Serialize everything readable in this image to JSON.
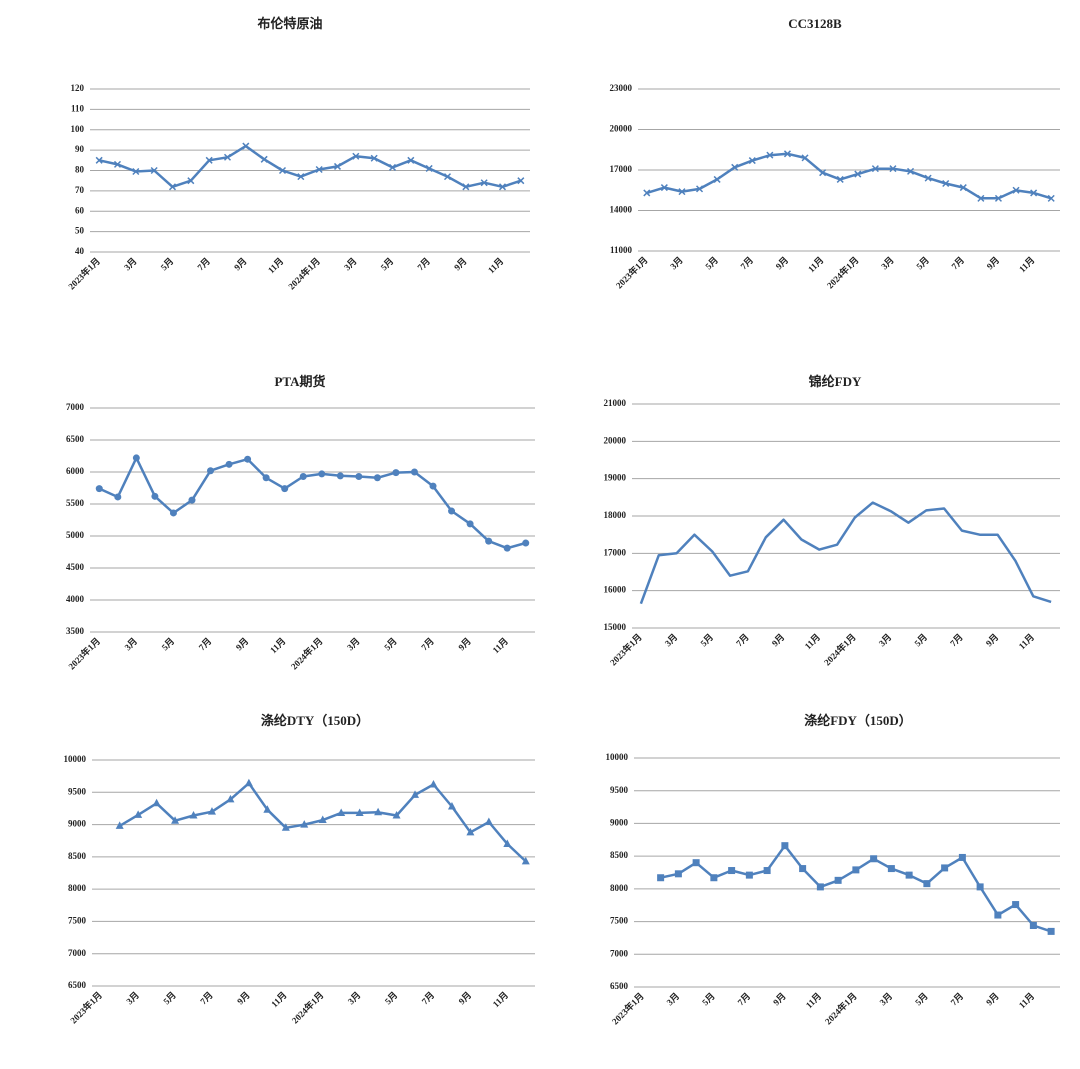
{
  "chart_data": [
    {
      "type": "line",
      "title": "布伦特原油",
      "marker": "x",
      "color": "#4f81bd",
      "grid": true,
      "categories": [
        "2023年1月",
        null,
        "3月",
        null,
        "5月",
        null,
        "7月",
        null,
        "9月",
        null,
        "11月",
        null,
        "2024年1月",
        null,
        "3月",
        null,
        "5月",
        null,
        "7月",
        null,
        "9月",
        null,
        "11月",
        null
      ],
      "values": [
        85,
        83,
        79.5,
        80,
        72,
        75,
        85,
        86.5,
        92,
        85.5,
        80,
        77,
        80.5,
        82,
        87,
        86,
        81.5,
        85,
        81,
        77,
        72,
        74,
        72,
        75
      ],
      "ylim": [
        40,
        120
      ],
      "yticks": [
        40,
        50,
        60,
        70,
        80,
        90,
        100,
        110,
        120
      ]
    },
    {
      "type": "line",
      "title": "CC3128B",
      "marker": "x",
      "color": "#4f81bd",
      "grid": true,
      "categories": [
        "2023年1月",
        null,
        "3月",
        null,
        "5月",
        null,
        "7月",
        null,
        "9月",
        null,
        "11月",
        null,
        "2024年1月",
        null,
        "3月",
        null,
        "5月",
        null,
        "7月",
        null,
        "9月",
        null,
        "11月",
        null
      ],
      "values": [
        15300,
        15700,
        15400,
        15600,
        16300,
        17200,
        17700,
        18100,
        18200,
        17900,
        16800,
        16300,
        16700,
        17100,
        17100,
        16900,
        16400,
        16000,
        15700,
        14900,
        14900,
        15500,
        15300,
        14900
      ],
      "ylim": [
        11000,
        23000
      ],
      "yticks": [
        11000,
        14000,
        17000,
        20000,
        23000
      ]
    },
    {
      "type": "line",
      "title": "PTA期货",
      "marker": "circle",
      "color": "#4f81bd",
      "grid": true,
      "categories": [
        "2023年1月",
        null,
        "3月",
        null,
        "5月",
        null,
        "7月",
        null,
        "9月",
        null,
        "11月",
        null,
        "2024年1月",
        null,
        "3月",
        null,
        "5月",
        null,
        "7月",
        null,
        "9月",
        null,
        "11月",
        null
      ],
      "values": [
        5740,
        5610,
        6220,
        5620,
        5360,
        5560,
        6020,
        6120,
        6200,
        5910,
        5740,
        5930,
        5970,
        5940,
        5930,
        5910,
        5990,
        6000,
        5780,
        5390,
        5190,
        4920,
        4810,
        4890
      ],
      "ylim": [
        3500,
        7000
      ],
      "yticks": [
        3500,
        4000,
        4500,
        5000,
        5500,
        6000,
        6500,
        7000
      ]
    },
    {
      "type": "line",
      "title": "锦纶FDY",
      "marker": "none",
      "color": "#4f81bd",
      "grid": true,
      "categories": [
        "2023年1月",
        null,
        "3月",
        null,
        "5月",
        null,
        "7月",
        null,
        "9月",
        null,
        "11月",
        null,
        "2024年1月",
        null,
        "3月",
        null,
        "5月",
        null,
        "7月",
        null,
        "9月",
        null,
        "11月",
        null
      ],
      "values": [
        15650,
        16950,
        17000,
        17500,
        17050,
        16400,
        16520,
        17430,
        17900,
        17370,
        17100,
        17230,
        17960,
        18360,
        18130,
        17820,
        18150,
        18200,
        17610,
        17500,
        17500,
        16800,
        15850,
        15700
      ],
      "ylim": [
        15000,
        21000
      ],
      "yticks": [
        15000,
        16000,
        17000,
        18000,
        19000,
        20000,
        21000
      ]
    },
    {
      "type": "line",
      "title": "涤纶DTY（150D）",
      "marker": "triangle",
      "color": "#4f81bd",
      "grid": true,
      "categories": [
        "2023年1月",
        null,
        "3月",
        null,
        "5月",
        null,
        "7月",
        null,
        "9月",
        null,
        "11月",
        null,
        "2024年1月",
        null,
        "3月",
        null,
        "5月",
        null,
        "7月",
        null,
        "9月",
        null,
        "11月",
        null
      ],
      "values": [
        null,
        8980,
        9150,
        9330,
        9060,
        9140,
        9200,
        9390,
        9640,
        9230,
        8950,
        9000,
        9070,
        9180,
        9180,
        9190,
        9140,
        9460,
        9620,
        9280,
        8880,
        9040,
        8700,
        8430
      ],
      "ylim": [
        6500,
        10000
      ],
      "yticks": [
        6500,
        7000,
        7500,
        8000,
        8500,
        9000,
        9500,
        10000
      ]
    },
    {
      "type": "line",
      "title": "涤纶FDY（150D）",
      "marker": "square",
      "color": "#4f81bd",
      "grid": true,
      "categories": [
        "2023年1月",
        null,
        "3月",
        null,
        "5月",
        null,
        "7月",
        null,
        "9月",
        null,
        "11月",
        null,
        "2024年1月",
        null,
        "3月",
        null,
        "5月",
        null,
        "7月",
        null,
        "9月",
        null,
        "11月",
        null
      ],
      "values": [
        null,
        8170,
        8230,
        8400,
        8170,
        8280,
        8210,
        8280,
        8660,
        8310,
        8030,
        8130,
        8290,
        8460,
        8310,
        8210,
        8080,
        8320,
        8480,
        8030,
        7600,
        7760,
        7440,
        7350
      ],
      "ylim": [
        6500,
        10000
      ],
      "yticks": [
        6500,
        7000,
        7500,
        8000,
        8500,
        9000,
        9500,
        10000
      ]
    }
  ]
}
